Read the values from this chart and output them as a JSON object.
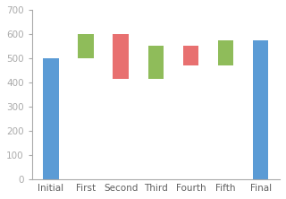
{
  "categories": [
    "Initial",
    "First",
    "Second",
    "Third",
    "Fourth",
    "Fifth",
    "Final"
  ],
  "label_colors": [
    "#4472C4",
    "#FF8C00",
    "#FF8C00",
    "#FF8C00",
    "#FF8C00",
    "#FF8C00",
    "#4472C4"
  ],
  "bar_bottoms": [
    0,
    500,
    415,
    415,
    470,
    470,
    0
  ],
  "bar_tops": [
    500,
    600,
    600,
    550,
    550,
    575,
    575
  ],
  "bar_colors": [
    "#5B9BD5",
    "#8FBC5A",
    "#E87070",
    "#8FBC5A",
    "#E87070",
    "#8FBC5A",
    "#5B9BD5"
  ],
  "ylim": [
    0,
    700
  ],
  "yticks": [
    0,
    100,
    200,
    300,
    400,
    500,
    600,
    700
  ],
  "bg_color": "#FFFFFF",
  "tick_label_color": "#808080",
  "label_fontsize": 7.5,
  "tick_fontsize": 7.5,
  "bar_width": 0.45,
  "spine_color": "#AAAAAA"
}
